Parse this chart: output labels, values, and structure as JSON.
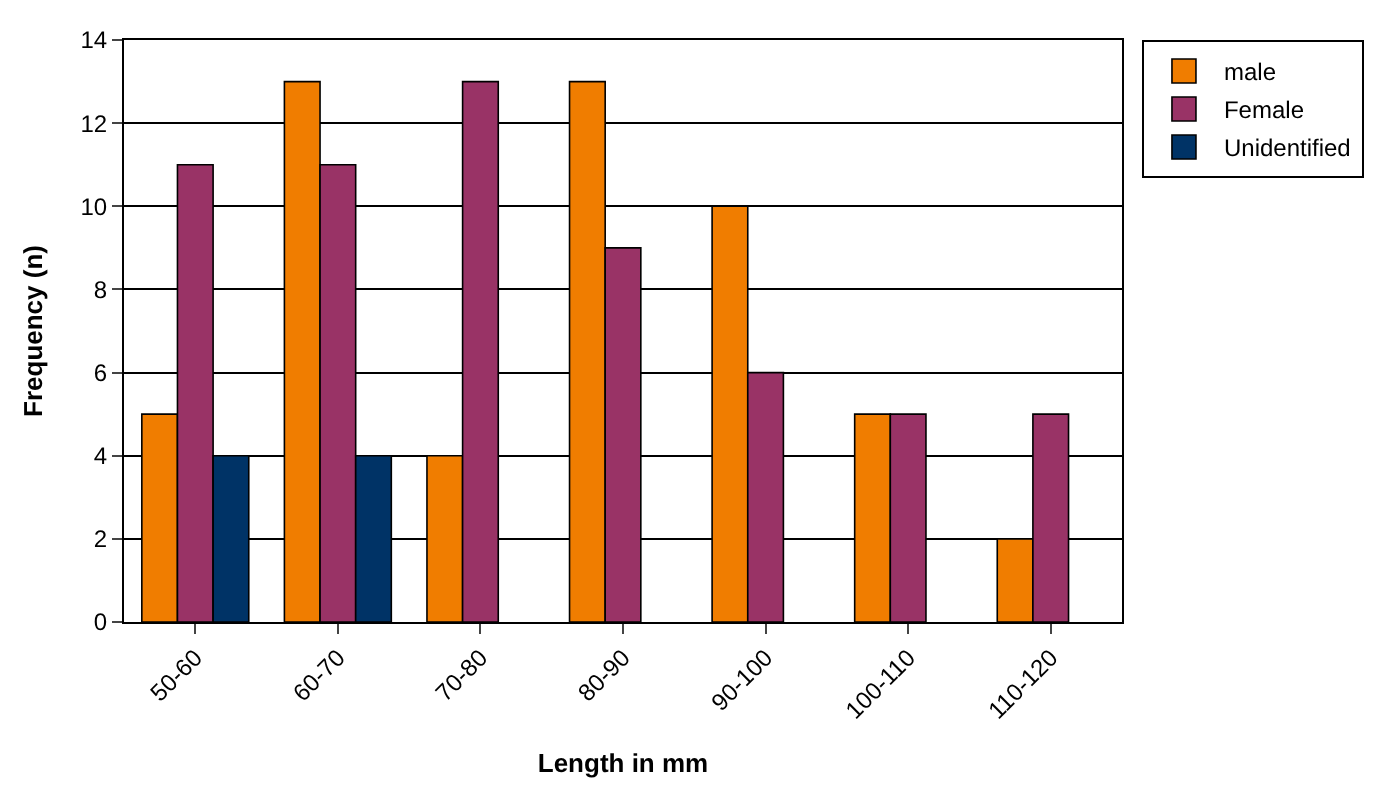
{
  "chart_data": {
    "type": "bar",
    "xlabel": "Length in mm",
    "ylabel": "Frequency (n)",
    "categories": [
      "50-60",
      "60-70",
      "70-80",
      "80-90",
      "90-100",
      "100-110",
      "110-120"
    ],
    "series": [
      {
        "name": "male",
        "color": "#f07d00",
        "values": [
          5,
          13,
          4,
          13,
          10,
          5,
          2
        ]
      },
      {
        "name": "Female",
        "color": "#993366",
        "values": [
          11,
          11,
          13,
          9,
          6,
          5,
          5
        ]
      },
      {
        "name": "Unidentified",
        "color": "#003366",
        "values": [
          4,
          4,
          null,
          null,
          null,
          null,
          null
        ]
      }
    ],
    "ylim": [
      0,
      14
    ],
    "yticks": [
      0,
      2,
      4,
      6,
      8,
      10,
      12,
      14
    ],
    "grid": "y",
    "legend": "top right"
  }
}
